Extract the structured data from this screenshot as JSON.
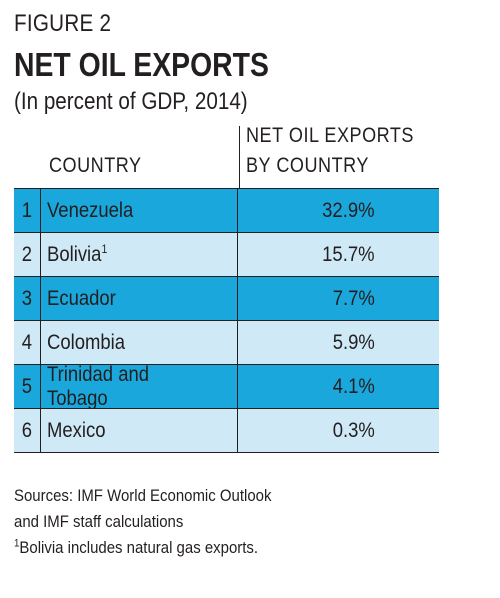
{
  "figure_label": "FIGURE 2",
  "title": "NET OIL EXPORTS",
  "subtitle": "(In percent of GDP, 2014)",
  "colors": {
    "row_dark": "#1aa7dc",
    "row_light": "#cfe9f7"
  },
  "chart_data": {
    "type": "table",
    "title": "NET OIL EXPORTS",
    "subtitle": "(In percent of GDP, 2014)",
    "columns": [
      "",
      "COUNTRY",
      "NET OIL EXPORTS BY COUNTRY"
    ],
    "header": {
      "country": "COUNTRY",
      "exports_line1": "NET OIL EXPORTS",
      "exports_line2": "BY COUNTRY"
    },
    "rows": [
      {
        "rank": "1",
        "country": "Venezuela",
        "footnote": "",
        "value_text": "32.9%",
        "value": 32.9
      },
      {
        "rank": "2",
        "country": "Bolivia",
        "footnote": "1",
        "value_text": "15.7%",
        "value": 15.7
      },
      {
        "rank": "3",
        "country": "Ecuador",
        "footnote": "",
        "value_text": "7.7%",
        "value": 7.7
      },
      {
        "rank": "4",
        "country": "Colombia",
        "footnote": "",
        "value_text": "5.9%",
        "value": 5.9
      },
      {
        "rank": "5",
        "country": "Trinidad and Tobago",
        "footnote": "",
        "value_text": "4.1%",
        "value": 4.1
      },
      {
        "rank": "6",
        "country": "Mexico",
        "footnote": "",
        "value_text": "0.3%",
        "value": 0.3
      }
    ]
  },
  "notes": {
    "sources_line1": "Sources: IMF World Economic Outlook",
    "sources_line2": "and IMF staff calculations",
    "footnote_mark": "1",
    "footnote_text": "Bolivia includes natural gas exports."
  }
}
